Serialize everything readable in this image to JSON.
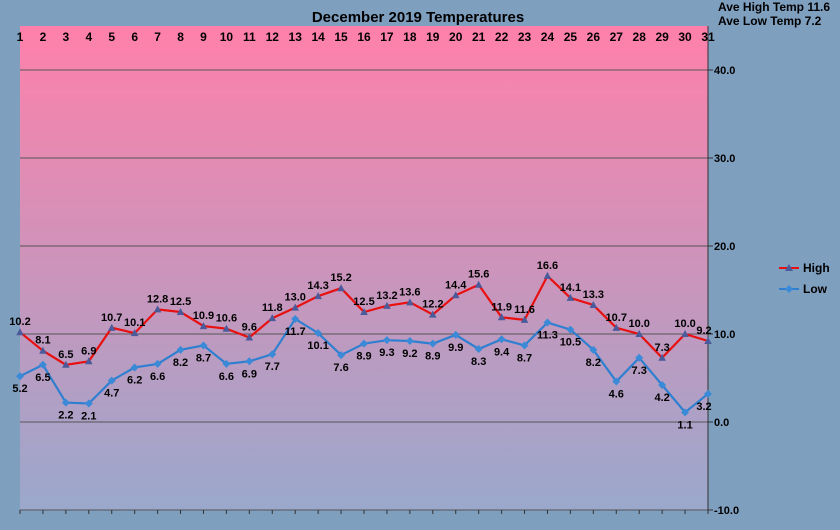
{
  "stats": {
    "ave_high": "Ave High Temp 11.6",
    "ave_low": "Ave Low Temp 7.2"
  },
  "colors": {
    "background": "#7f9fbf",
    "plot_top": "#ff80aa",
    "plot_bottom": "#9aa8cc",
    "high": "#e81010",
    "low": "#2f7fd0",
    "marker_high": "#4a5a9a",
    "marker_low": "#3a8ad8",
    "grid": "#555555"
  },
  "chart_data": {
    "type": "line",
    "title": "December 2019 Temperatures",
    "xlabel": "",
    "ylabel": "",
    "x": [
      "1",
      "2",
      "3",
      "4",
      "5",
      "6",
      "7",
      "8",
      "9",
      "10",
      "11",
      "12",
      "13",
      "14",
      "15",
      "16",
      "17",
      "18",
      "19",
      "20",
      "21",
      "22",
      "23",
      "24",
      "25",
      "26",
      "27",
      "28",
      "29",
      "30",
      "31"
    ],
    "ylim": [
      -10,
      45
    ],
    "yticks": [
      "40.0",
      "30.0",
      "20.0",
      "10.0",
      "0.0",
      "-10.0"
    ],
    "ytick_values": [
      40,
      30,
      20,
      10,
      0,
      -10
    ],
    "grid": true,
    "legend_position": "right",
    "series": [
      {
        "name": "High",
        "values": [
          10.2,
          8.1,
          6.5,
          6.9,
          10.7,
          10.1,
          12.8,
          12.5,
          10.9,
          10.6,
          9.6,
          11.8,
          13.0,
          14.3,
          15.2,
          12.5,
          13.2,
          13.6,
          12.2,
          14.4,
          15.6,
          11.9,
          11.6,
          16.6,
          14.1,
          13.3,
          10.7,
          10.0,
          7.3,
          10.0,
          9.2
        ]
      },
      {
        "name": "Low",
        "values": [
          5.2,
          6.5,
          2.2,
          2.1,
          4.7,
          6.2,
          6.6,
          8.2,
          8.7,
          6.6,
          6.9,
          7.7,
          11.7,
          10.1,
          7.6,
          8.9,
          9.3,
          9.2,
          8.9,
          9.9,
          8.3,
          9.4,
          8.7,
          11.3,
          10.5,
          8.2,
          4.6,
          7.3,
          4.2,
          1.1,
          3.2
        ]
      }
    ]
  }
}
